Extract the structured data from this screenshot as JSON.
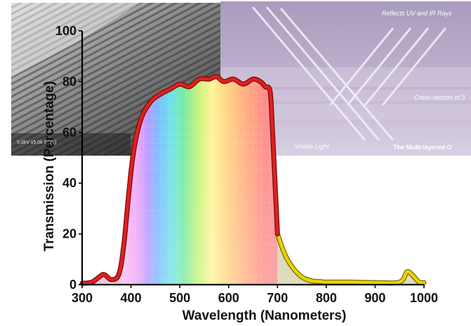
{
  "chart_data": {
    "type": "area",
    "title": "",
    "xlabel": "Wavelength (Nanometers)",
    "ylabel": "Transmission (Percentage)",
    "xlim": [
      300,
      1000
    ],
    "ylim": [
      0,
      100
    ],
    "x_ticks": [
      "300",
      "400",
      "500",
      "600",
      "700",
      "800",
      "900",
      "1000"
    ],
    "y_ticks": [
      "0",
      "20",
      "40",
      "60",
      "80",
      "100"
    ],
    "grid": false,
    "legend": "none",
    "series": [
      {
        "x": [
          300,
          320,
          335,
          345,
          360,
          375,
          385,
          395,
          405,
          420,
          440,
          460,
          480,
          500,
          520,
          540,
          560,
          575,
          590,
          610,
          630,
          650,
          665,
          675,
          685,
          690,
          700,
          715,
          730,
          750,
          770,
          790,
          800,
          850,
          900,
          950,
          965,
          975,
          990,
          1000
        ],
        "y": [
          0.5,
          1,
          3,
          4,
          2,
          4,
          15,
          35,
          52,
          65,
          72,
          75,
          77,
          79,
          78,
          81,
          81,
          82,
          80,
          81,
          79,
          81,
          80,
          78,
          76,
          60,
          20,
          12,
          7,
          3,
          1.5,
          1.2,
          1,
          1,
          0.8,
          1,
          5,
          4,
          1,
          0.8
        ],
        "color_visible": "#e02020",
        "color_infrared": "#e8d400"
      }
    ]
  },
  "insets": {
    "sem_caption": "5.0kV  x5.0k SE(L)",
    "diagram_labels": {
      "top": "Reflects UV and IR Rays",
      "middle": "Cross-section of 3",
      "bottom_left": "Visible Light",
      "bottom_right": "The Multi-layered O"
    }
  }
}
